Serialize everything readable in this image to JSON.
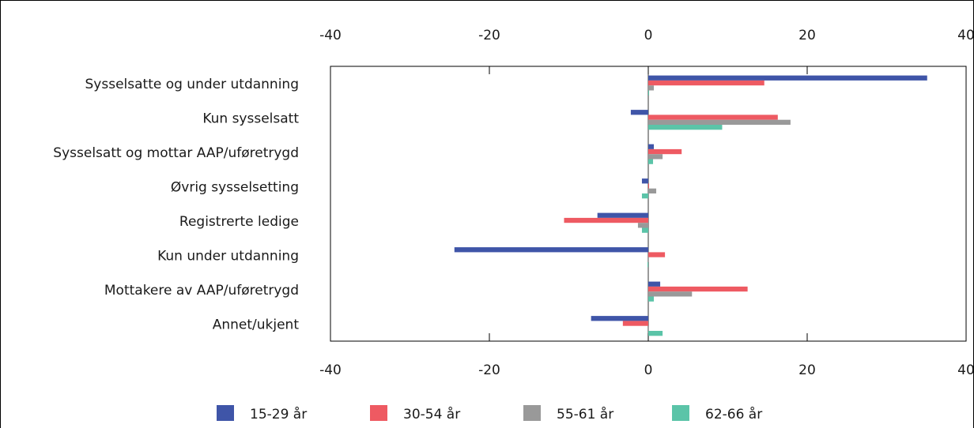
{
  "chart_data": {
    "type": "bar",
    "orientation": "horizontal",
    "title": "",
    "xlabel": "",
    "ylabel": "",
    "xlim": [
      -40,
      40
    ],
    "x_ticks": [
      -40,
      -20,
      0,
      20,
      40
    ],
    "x_tick_labels": [
      "-40",
      "-20",
      "0",
      "20",
      "40"
    ],
    "grid": false,
    "legend_position": "bottom",
    "categories": [
      "Sysselsatte og under utdanning",
      "Kun sysselsatt",
      "Sysselsatt og mottar AAP/uføretrygd",
      "Øvrig sysselsetting",
      "Registrerte ledige",
      "Kun under utdanning",
      "Mottakere av AAP/uføretrygd",
      "Annet/ukjent"
    ],
    "series": [
      {
        "name": "15-29 år",
        "color": "#3f55a8",
        "values": [
          35.1,
          -2.2,
          0.7,
          -0.8,
          -6.4,
          -24.4,
          1.5,
          -7.2
        ]
      },
      {
        "name": "30-54 år",
        "color": "#ee5a62",
        "values": [
          14.6,
          16.3,
          4.2,
          0.1,
          -10.6,
          2.1,
          12.5,
          -3.2
        ]
      },
      {
        "name": "55-61 år",
        "color": "#999999",
        "values": [
          0.7,
          17.9,
          1.8,
          1.0,
          -1.3,
          0.0,
          5.5,
          0.0
        ]
      },
      {
        "name": "62-66 år",
        "color": "#5bc4a8",
        "values": [
          0.1,
          9.3,
          0.6,
          -0.8,
          -0.8,
          -0.1,
          0.7,
          1.8
        ]
      }
    ]
  }
}
